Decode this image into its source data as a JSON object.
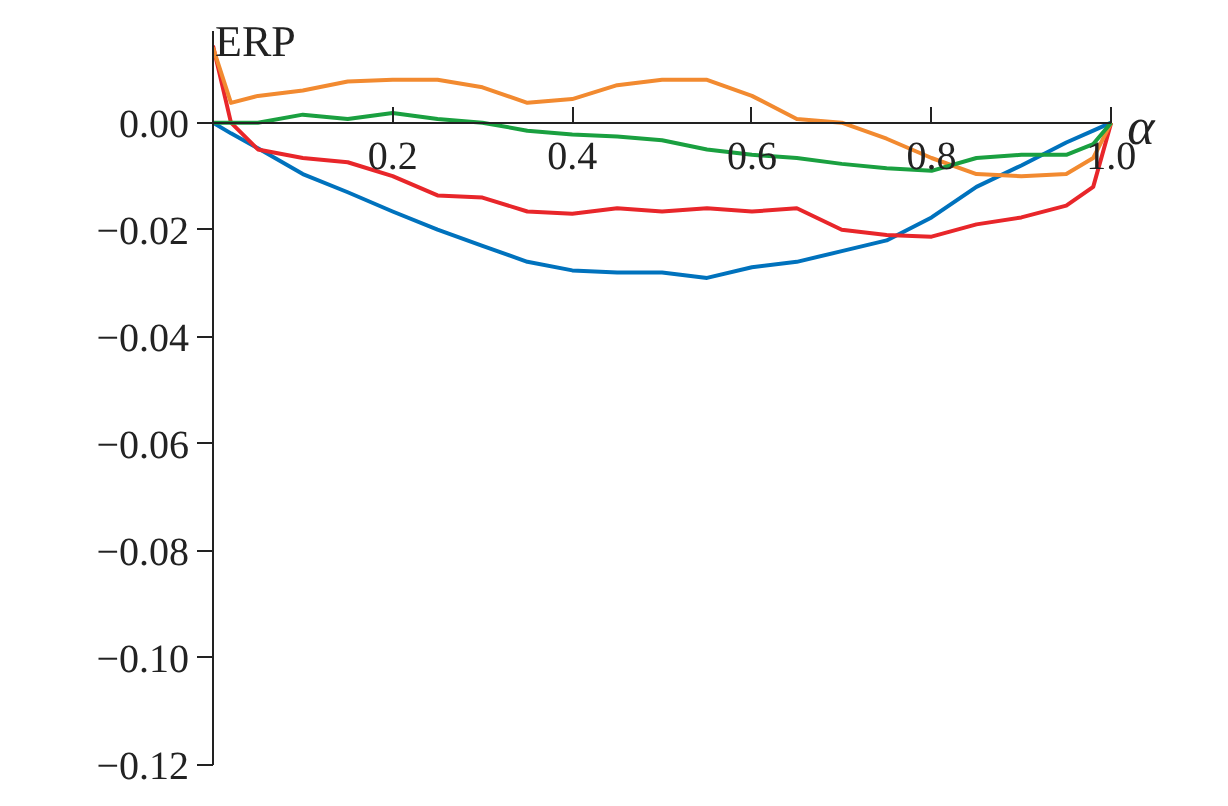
{
  "chart_data": {
    "type": "line",
    "xlabel": "α",
    "ylabel": "ERP",
    "x": [
      0,
      0.02,
      0.05,
      0.1,
      0.15,
      0.2,
      0.25,
      0.3,
      0.35,
      0.4,
      0.45,
      0.5,
      0.55,
      0.6,
      0.65,
      0.7,
      0.75,
      0.8,
      0.85,
      0.9,
      0.95,
      0.98,
      1.0
    ],
    "series": [
      {
        "color": "#0072bd",
        "values": [
          0,
          -0.002,
          -0.0048,
          -0.0096,
          -0.013,
          -0.0166,
          -0.02,
          -0.023,
          -0.026,
          -0.0276,
          -0.028,
          -0.028,
          -0.029,
          -0.027,
          -0.026,
          -0.024,
          -0.022,
          -0.0177,
          -0.012,
          -0.008,
          -0.0037,
          -0.0015,
          0
        ]
      },
      {
        "color": "#e8262a",
        "values": [
          0.0144,
          0,
          -0.005,
          -0.0066,
          -0.0074,
          -0.01,
          -0.0136,
          -0.014,
          -0.0166,
          -0.017,
          -0.016,
          -0.0166,
          -0.016,
          -0.0166,
          -0.016,
          -0.02,
          -0.021,
          -0.0213,
          -0.019,
          -0.0177,
          -0.0155,
          -0.012,
          0
        ]
      },
      {
        "color": "#f28a30",
        "values": [
          0.014,
          0.0037,
          0.005,
          0.006,
          0.0077,
          0.008,
          0.008,
          0.0066,
          0.0037,
          0.0044,
          0.007,
          0.008,
          0.008,
          0.005,
          0.0007,
          0,
          -0.003,
          -0.0066,
          -0.0096,
          -0.01,
          -0.0096,
          -0.0066,
          0
        ]
      },
      {
        "color": "#1aa040",
        "values": [
          0,
          0,
          0,
          0.0015,
          0.0007,
          0.0018,
          0.0007,
          0,
          -0.0015,
          -0.0022,
          -0.0026,
          -0.0033,
          -0.005,
          -0.006,
          -0.0066,
          -0.0077,
          -0.0085,
          -0.009,
          -0.0066,
          -0.006,
          -0.006,
          -0.004,
          0
        ]
      }
    ],
    "xlim": [
      0,
      1.0
    ],
    "ylim": [
      -0.12,
      0.017
    ],
    "xticks": [
      0.2,
      0.4,
      0.6,
      0.8,
      {
        "value": 1.0,
        "label": "1.0"
      }
    ],
    "yticks": [
      {
        "value": 0,
        "label": "0.00"
      },
      {
        "value": -0.02,
        "label": "−0.02"
      },
      {
        "value": -0.04,
        "label": "−0.04"
      },
      {
        "value": -0.06,
        "label": "−0.06"
      },
      {
        "value": -0.08,
        "label": "−0.08"
      },
      {
        "value": -0.1,
        "label": "−0.10"
      },
      {
        "value": -0.12,
        "label": "−0.12"
      }
    ],
    "grid": false,
    "line_style": "solid",
    "marker": "none"
  }
}
